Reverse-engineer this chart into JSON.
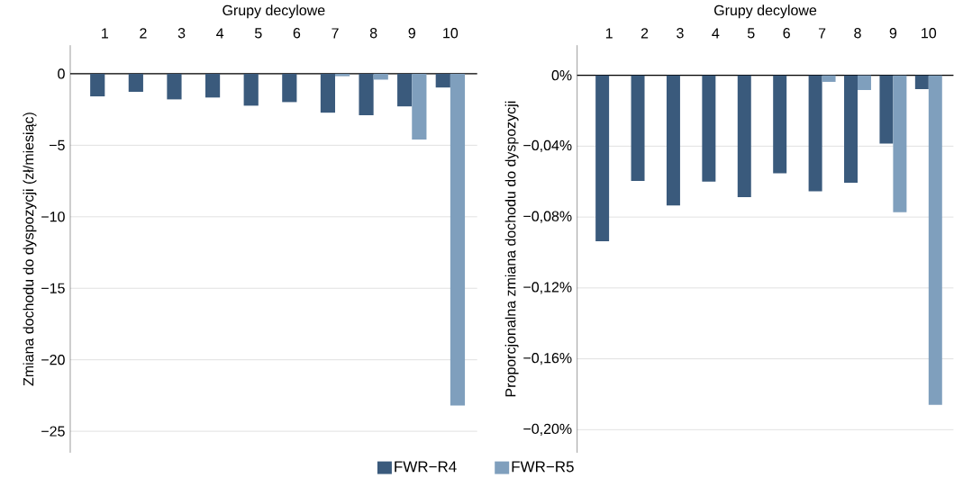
{
  "chart_data": [
    {
      "type": "bar",
      "xlabel": "Grupy decylowe",
      "ylabel": "Zmiana dochodu do dyspozycji (zł/miesiąc)",
      "categories": [
        "1",
        "2",
        "3",
        "4",
        "5",
        "6",
        "7",
        "8",
        "9",
        "10"
      ],
      "series": [
        {
          "name": "FWR−R4",
          "color": "#3a5a7c",
          "values": [
            -1.58,
            -1.26,
            -1.79,
            -1.66,
            -2.23,
            -1.98,
            -2.72,
            -2.9,
            -2.28,
            -0.96
          ]
        },
        {
          "name": "FWR−R5",
          "color": "#7f9fbd",
          "values": [
            0,
            0,
            0,
            0,
            0,
            0,
            -0.17,
            -0.41,
            -4.6,
            -23.2
          ]
        }
      ],
      "ylim": [
        -26.5,
        2
      ],
      "yticks": [
        0,
        {
          "value": -5,
          "label": "−5"
        },
        {
          "value": -10,
          "label": "−10"
        },
        {
          "value": -15,
          "label": "−15"
        },
        {
          "value": -20,
          "label": "−20"
        },
        {
          "value": -25,
          "label": "−25"
        }
      ],
      "grid": "y",
      "legend": "bottom"
    },
    {
      "type": "bar",
      "xlabel": "Grupy decylowe",
      "ylabel": "Proporcjonalna zmiana dochodu do dyspozycji",
      "categories": [
        "1",
        "2",
        "3",
        "4",
        "5",
        "6",
        "7",
        "8",
        "9",
        "10"
      ],
      "series": [
        {
          "color": "#3a5a7c",
          "values": [
            -0.0937,
            -0.0596,
            -0.0734,
            -0.06,
            -0.0688,
            -0.0553,
            -0.0654,
            -0.0606,
            -0.0385,
            -0.0078
          ]
        },
        {
          "color": "#7f9fbd",
          "values": [
            0,
            0,
            0,
            0,
            0,
            0,
            -0.0037,
            -0.0083,
            -0.0773,
            -0.186
          ]
        }
      ],
      "ylim": [
        -0.213,
        0.017
      ],
      "yticks": [
        {
          "value": 0,
          "label": "0%"
        },
        {
          "value": -0.04,
          "label": "−0,04%"
        },
        {
          "value": -0.08,
          "label": "−0,08%"
        },
        {
          "value": -0.12,
          "label": "−0,12%"
        },
        {
          "value": -0.16,
          "label": "−0,16%"
        },
        {
          "value": -0.2,
          "label": "−0,20%"
        }
      ],
      "grid": "y"
    }
  ]
}
